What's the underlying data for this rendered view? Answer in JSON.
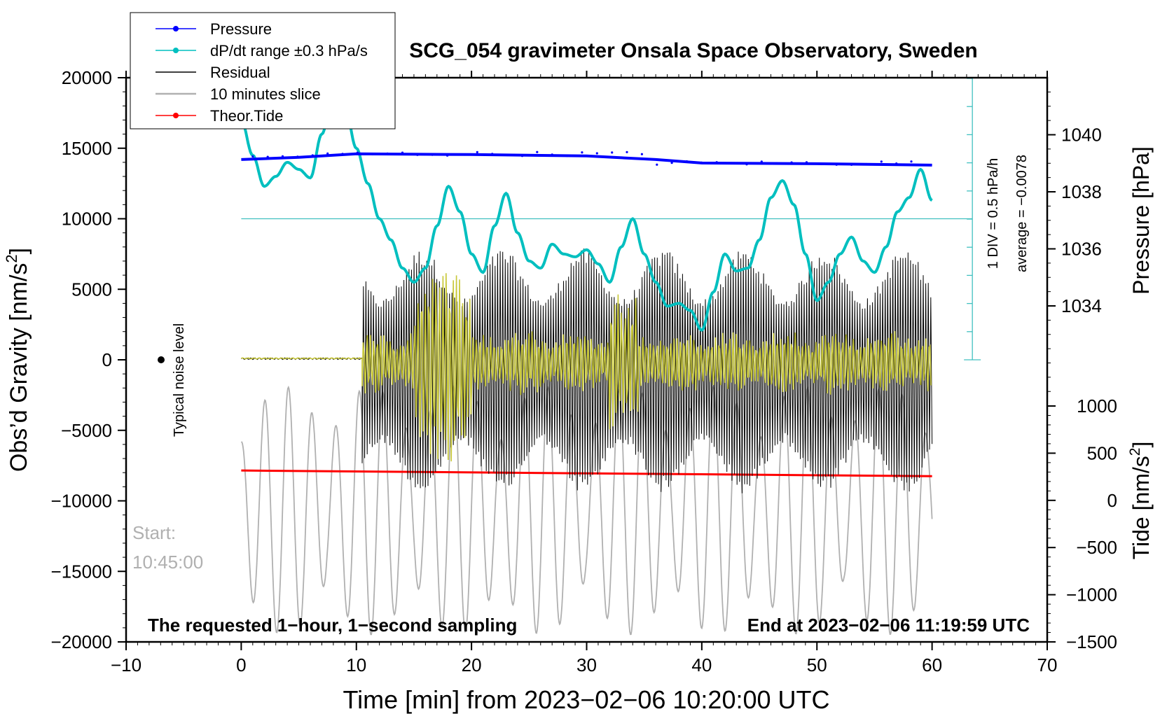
{
  "chart_data": {
    "type": "line",
    "title": "SCG_054 gravimeter Onsala Space Observatory, Sweden",
    "xlabel": "Time [min] from 2023−02−06 10:20:00 UTC",
    "ylabel_left": "Obs’d Gravity [nm/s",
    "ylabel_sup": "2",
    "ylabel_right_pressure": "Pressure [hPa]",
    "ylabel_right_tide": "Tide [nm/s",
    "xlim": [
      -10,
      70
    ],
    "ylim": [
      -20000,
      20000
    ],
    "x_ticks": [
      -10,
      0,
      10,
      20,
      30,
      40,
      50,
      60,
      70
    ],
    "x_tick_labels": [
      "−10",
      "0",
      "10",
      "20",
      "30",
      "40",
      "50",
      "60",
      "70"
    ],
    "y_ticks": [
      20000,
      15000,
      10000,
      5000,
      0,
      -5000,
      -10000,
      -15000,
      -20000
    ],
    "y_tick_labels": [
      "20000",
      "15000",
      "10000",
      "5000",
      "0",
      "−5000",
      "−10000",
      "−15000",
      "−20000"
    ],
    "pressure_axis": {
      "range": [
        1030,
        1042
      ],
      "ticks": [
        1034,
        1036,
        1038,
        1040
      ],
      "tick_labels": [
        "1034",
        "1036",
        "1038",
        "1040"
      ]
    },
    "tide_axis": {
      "range": [
        -1500,
        1000
      ],
      "ticks": [
        1000,
        500,
        0,
        -500,
        -1000,
        -1500
      ],
      "tick_labels": [
        "1000",
        "500",
        "0",
        "−500",
        "−1000",
        "−1500"
      ]
    },
    "legend": [
      {
        "label": "Pressure",
        "color": "#0000ff",
        "marker": true
      },
      {
        "label": "dP/dt range ±0.3 hPa/s",
        "color": "#00bfbf",
        "marker": true
      },
      {
        "label": "Residual",
        "color": "#000000",
        "marker": false
      },
      {
        "label": "10 minutes slice",
        "color": "#b0b0b0",
        "marker": false
      },
      {
        "label": "Theor.Tide",
        "color": "#ff0000",
        "marker": true
      }
    ],
    "legend_position": "top-left",
    "series": [
      {
        "name": "Pressure",
        "color": "#0000ff",
        "x": [
          0,
          5,
          10,
          20,
          30,
          36,
          40,
          50,
          60
        ],
        "values": [
          14200,
          14350,
          14600,
          14550,
          14450,
          14200,
          13950,
          13900,
          13800
        ]
      },
      {
        "name": "dP/dt",
        "color": "#00bfbf",
        "x": [
          0,
          1,
          2,
          3,
          4,
          5,
          6,
          7,
          8,
          9,
          10,
          11,
          12,
          13,
          14,
          15,
          16,
          17,
          18,
          19,
          20,
          21,
          22,
          23,
          24,
          25,
          26,
          27,
          28,
          29,
          30,
          31,
          32,
          33,
          34,
          35,
          36,
          37,
          38,
          39,
          40,
          41,
          42,
          43,
          44,
          45,
          46,
          47,
          48,
          49,
          50,
          51,
          52,
          53,
          54,
          55,
          56,
          57,
          58,
          59,
          60
        ],
        "values": [
          17000,
          14500,
          12300,
          13000,
          14000,
          13500,
          12900,
          16000,
          19000,
          18000,
          15000,
          12500,
          10000,
          8500,
          6500,
          5500,
          6500,
          9500,
          12300,
          10500,
          7500,
          6200,
          9500,
          11800,
          9000,
          7000,
          6500,
          8200,
          7500,
          7300,
          7800,
          6800,
          5500,
          8000,
          10000,
          7500,
          5500,
          3800,
          4000,
          3500,
          2100,
          4800,
          7500,
          6300,
          6500,
          8500,
          11500,
          12700,
          11000,
          7500,
          4200,
          5500,
          7500,
          8700,
          7000,
          6200,
          8000,
          10500,
          11500,
          13500,
          11300
        ]
      },
      {
        "name": "Theor.Tide",
        "color": "#ff0000",
        "x": [
          0,
          60
        ],
        "values": [
          -7850,
          -8250
        ]
      }
    ],
    "hline_dpdt_zero": 10000,
    "annotations": {
      "noise_label": "Typical noise level",
      "start_label": "Start:",
      "start_time": "10:45:00",
      "bottom_left": "The requested 1−hour, 1−second sampling",
      "bottom_right": "End at 2023−02−06 11:19:59 UTC",
      "scale_div": "1 DIV = 0.5 hPa/h",
      "scale_avg": "average = −0.0078"
    }
  }
}
